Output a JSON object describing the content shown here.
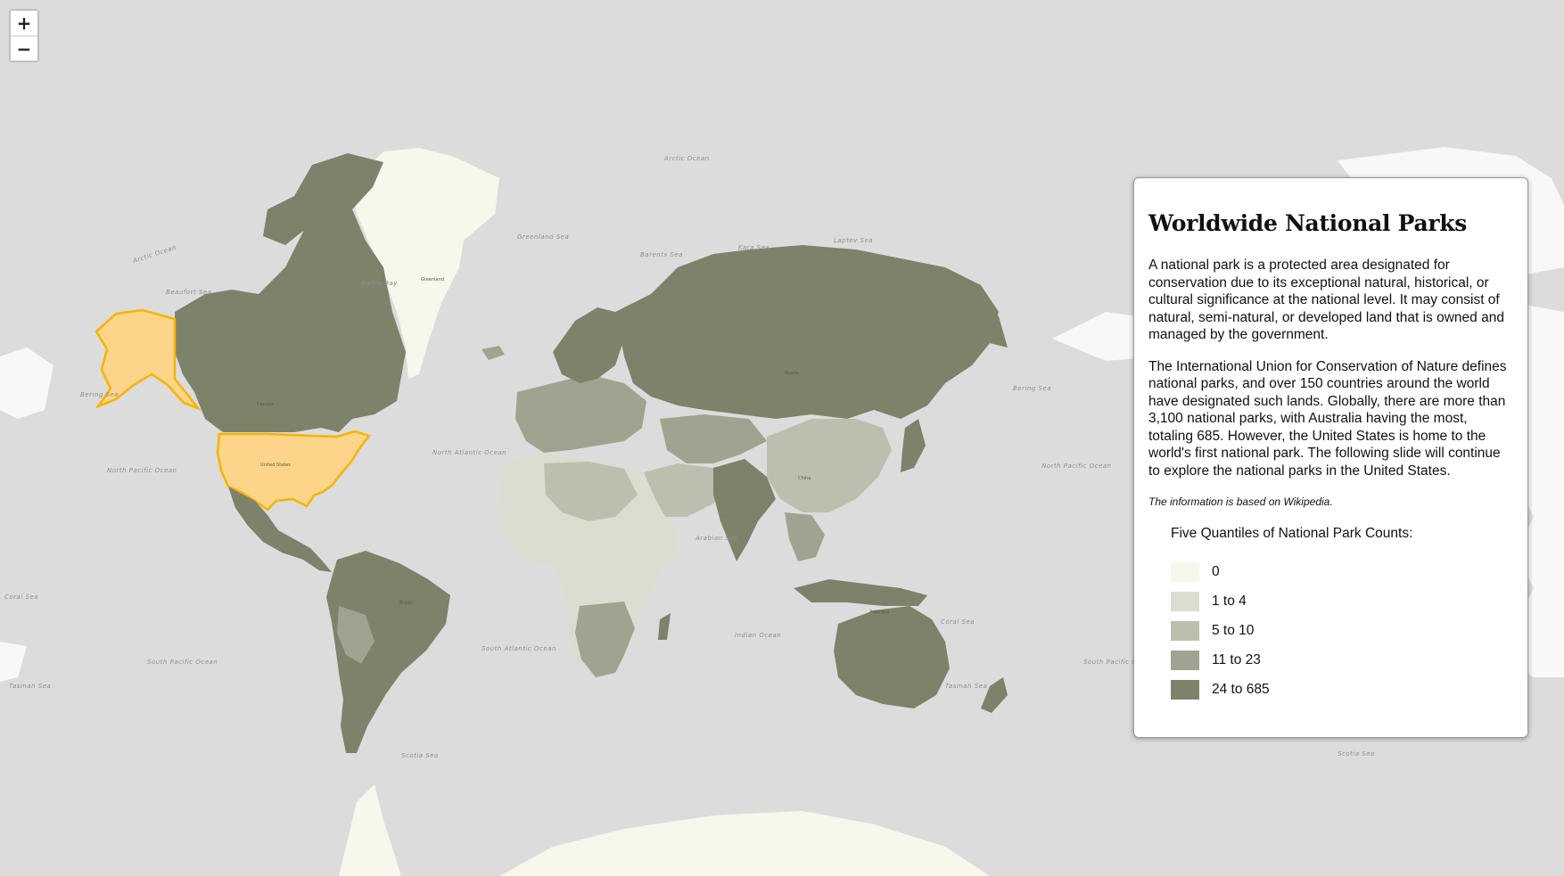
{
  "controls": {
    "zoom_in": "+",
    "zoom_out": "−"
  },
  "panel": {
    "title": "Worldwide National Parks",
    "paragraph1": "A national park is a protected area designated for conservation due to its exceptional natural, historical, or cultural significance at the national level. It may consist of natural, semi-natural, or developed land that is owned and managed by the government.",
    "paragraph2": "The International Union for Conservation of Nature defines national parks, and over 150 countries around the world have designated such lands. Globally, there are more than 3,100 national parks, with Australia having the most, totaling 685. However, the United States is home to the world's first national park. The following slide will continue to explore the national parks in the United States.",
    "note": "The information is based on Wikipedia."
  },
  "legend": {
    "title": "Five Quantiles of National Park Counts:",
    "items": [
      {
        "label": "0",
        "color": "#f7f7ec"
      },
      {
        "label": "1 to 4",
        "color": "#dcdcd0"
      },
      {
        "label": "5 to 10",
        "color": "#bdbfae"
      },
      {
        "label": "11 to 23",
        "color": "#a0a38f"
      },
      {
        "label": "24 to 685",
        "color": "#7d826b"
      }
    ]
  },
  "highlight": {
    "color": "#fdd58a",
    "border": "#f5b400"
  },
  "map_labels": {
    "oceans": [
      "Arctic Ocean",
      "North Pacific Ocean",
      "North Atlantic Ocean",
      "South Atlantic Ocean",
      "Indian Ocean",
      "South Pacific Ocean",
      "Arctic Ocean",
      "North Pacific Ocean",
      "South Pacific Ocean"
    ],
    "seas": [
      "Beaufort Sea",
      "Baffin Bay",
      "Greenland Sea",
      "Barents Sea",
      "Kara Sea",
      "Laptev Sea",
      "Bering Sea",
      "Arabian Sea",
      "Coral Sea",
      "Tasman Sea",
      "Scotia Sea",
      "Bering Sea",
      "Coral Sea",
      "Tasman Sea",
      "Scotia Sea"
    ],
    "countries": [
      "United States",
      "Canada",
      "Brazil",
      "Russia",
      "China",
      "Australia",
      "Greenland"
    ]
  },
  "map_data": {
    "highlighted_country": "United States",
    "top_country": "Australia"
  }
}
